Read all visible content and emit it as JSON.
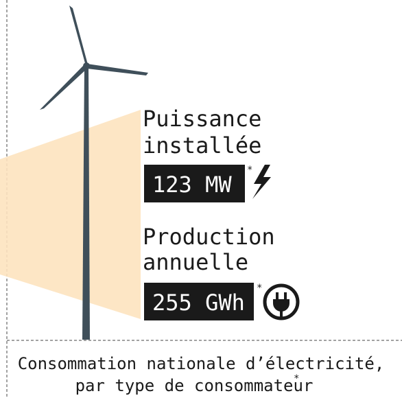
{
  "power": {
    "title_line1": "Puissance",
    "title_line2": "installée",
    "value": "123 MW",
    "note": "*"
  },
  "production": {
    "title_line1": "Production",
    "title_line2": "annuelle",
    "value": "255 GWh",
    "note": "*"
  },
  "footer": {
    "line1": "Consommation nationale d’électricité,",
    "line2": "par type de consommateur",
    "note": "*"
  }
}
